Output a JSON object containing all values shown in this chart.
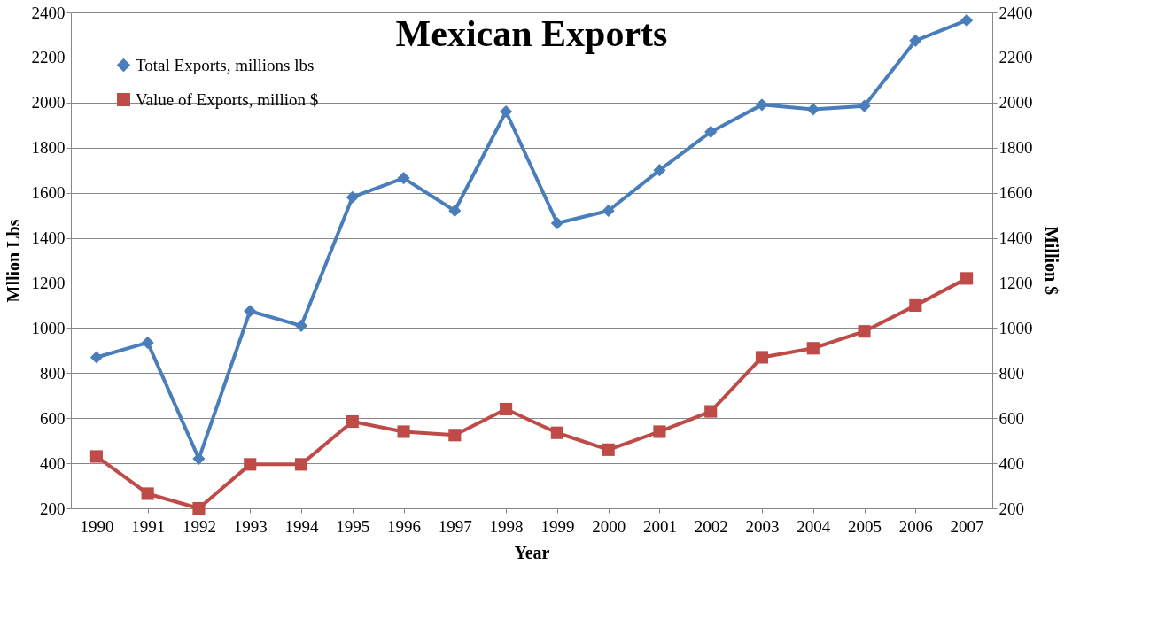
{
  "chart_data": {
    "type": "line",
    "title": "Mexican Exports",
    "xlabel": "Year",
    "ylabel": "Mllion Lbs",
    "y2label": "Million $",
    "categories": [
      "1990",
      "1991",
      "1992",
      "1993",
      "1994",
      "1995",
      "1996",
      "1997",
      "1998",
      "1999",
      "2000",
      "2001",
      "2002",
      "2003",
      "2004",
      "2005",
      "2006",
      "2007"
    ],
    "series": [
      {
        "name": "Total Exports, millions lbs",
        "color": "#4a7ebb",
        "marker": "diamond",
        "values": [
          870,
          935,
          420,
          1075,
          1010,
          1580,
          1665,
          1520,
          1960,
          1465,
          1520,
          1700,
          1870,
          1990,
          1970,
          1985,
          2275,
          2365
        ]
      },
      {
        "name": "Value of Exports, million $",
        "color": "#be4b48",
        "marker": "square",
        "axis": "y2",
        "values": [
          430,
          265,
          200,
          395,
          395,
          585,
          540,
          525,
          640,
          535,
          460,
          540,
          630,
          870,
          910,
          985,
          1100,
          1220
        ]
      }
    ],
    "ylim": [
      200,
      2400
    ],
    "yticks": [
      200,
      400,
      600,
      800,
      1000,
      1200,
      1400,
      1600,
      1800,
      2000,
      2200,
      2400
    ],
    "y2lim": [
      200,
      2400
    ],
    "y2ticks": [
      200,
      400,
      600,
      800,
      1000,
      1200,
      1400,
      1600,
      1800,
      2000,
      2200,
      2400
    ],
    "grid": "y",
    "legend": "top left",
    "line_style": "solid"
  }
}
